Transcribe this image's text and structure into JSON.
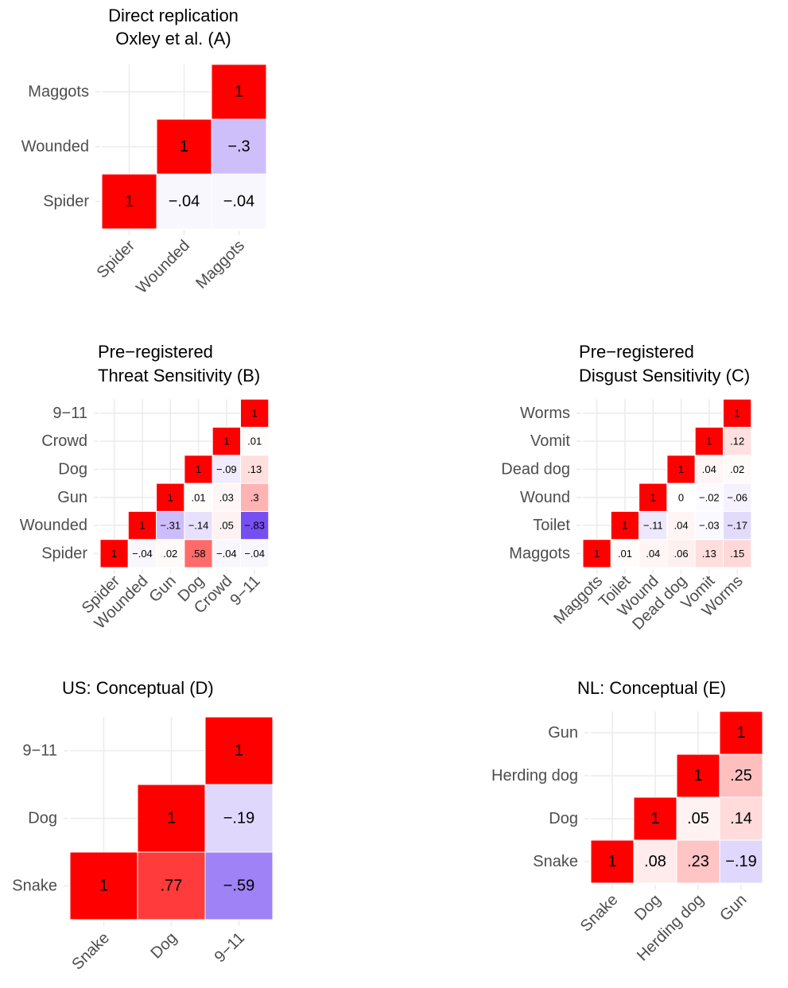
{
  "figure_type": "correlation heatmaps (lower-triangle, shown as upper)",
  "color_scale": {
    "low": "#5a2bf0",
    "mid": "#ffffff",
    "high": "#ff0000",
    "limits": [
      -1,
      1
    ]
  },
  "chart_data": [
    {
      "id": "A",
      "type": "heatmap",
      "title": "Direct replication\n Oxley et al. (A)",
      "variables": [
        "Spider",
        "Wounded",
        "Maggots"
      ],
      "cells": [
        {
          "x": "Spider",
          "y": "Spider",
          "value": 1,
          "label": "1"
        },
        {
          "x": "Wounded",
          "y": "Spider",
          "value": -0.04,
          "label": "−.04"
        },
        {
          "x": "Maggots",
          "y": "Spider",
          "value": -0.04,
          "label": "−.04"
        },
        {
          "x": "Wounded",
          "y": "Wounded",
          "value": 1,
          "label": "1"
        },
        {
          "x": "Maggots",
          "y": "Wounded",
          "value": -0.3,
          "label": "−.3"
        },
        {
          "x": "Maggots",
          "y": "Maggots",
          "value": 1,
          "label": "1"
        }
      ]
    },
    {
      "id": "B",
      "type": "heatmap",
      "title": "Pre−registered\n Threat Sensitivity (B)",
      "variables": [
        "Spider",
        "Wounded",
        "Gun",
        "Dog",
        "Crowd",
        "9−11"
      ],
      "cells": [
        {
          "x": "Spider",
          "y": "Spider",
          "value": 1,
          "label": "1"
        },
        {
          "x": "Wounded",
          "y": "Spider",
          "value": -0.04,
          "label": "−.04"
        },
        {
          "x": "Gun",
          "y": "Spider",
          "value": 0.02,
          "label": ".02"
        },
        {
          "x": "Dog",
          "y": "Spider",
          "value": 0.58,
          "label": ".58"
        },
        {
          "x": "Crowd",
          "y": "Spider",
          "value": -0.04,
          "label": "−.04"
        },
        {
          "x": "9−11",
          "y": "Spider",
          "value": -0.04,
          "label": "−.04"
        },
        {
          "x": "Wounded",
          "y": "Wounded",
          "value": 1,
          "label": "1"
        },
        {
          "x": "Gun",
          "y": "Wounded",
          "value": -0.31,
          "label": "−.31"
        },
        {
          "x": "Dog",
          "y": "Wounded",
          "value": -0.14,
          "label": "−.14"
        },
        {
          "x": "Crowd",
          "y": "Wounded",
          "value": 0.05,
          "label": ".05"
        },
        {
          "x": "9−11",
          "y": "Wounded",
          "value": -0.83,
          "label": "−.83"
        },
        {
          "x": "Gun",
          "y": "Gun",
          "value": 1,
          "label": "1"
        },
        {
          "x": "Dog",
          "y": "Gun",
          "value": 0.01,
          "label": ".01"
        },
        {
          "x": "Crowd",
          "y": "Gun",
          "value": 0.03,
          "label": ".03"
        },
        {
          "x": "9−11",
          "y": "Gun",
          "value": 0.3,
          "label": ".3"
        },
        {
          "x": "Dog",
          "y": "Dog",
          "value": 1,
          "label": "1"
        },
        {
          "x": "Crowd",
          "y": "Dog",
          "value": -0.09,
          "label": "−.09"
        },
        {
          "x": "9−11",
          "y": "Dog",
          "value": 0.13,
          "label": ".13"
        },
        {
          "x": "Crowd",
          "y": "Crowd",
          "value": 1,
          "label": "1"
        },
        {
          "x": "9−11",
          "y": "Crowd",
          "value": 0.01,
          "label": ".01"
        },
        {
          "x": "9−11",
          "y": "9−11",
          "value": 1,
          "label": "1"
        }
      ]
    },
    {
      "id": "C",
      "type": "heatmap",
      "title": "Pre−registered\n Disgust Sensitivity (C)",
      "variables": [
        "Maggots",
        "Toilet",
        "Wound",
        "Dead dog",
        "Vomit",
        "Worms"
      ],
      "cells": [
        {
          "x": "Maggots",
          "y": "Maggots",
          "value": 1,
          "label": "1"
        },
        {
          "x": "Toilet",
          "y": "Maggots",
          "value": 0.01,
          "label": ".01"
        },
        {
          "x": "Wound",
          "y": "Maggots",
          "value": 0.04,
          "label": ".04"
        },
        {
          "x": "Dead dog",
          "y": "Maggots",
          "value": 0.06,
          "label": ".06"
        },
        {
          "x": "Vomit",
          "y": "Maggots",
          "value": 0.13,
          "label": ".13"
        },
        {
          "x": "Worms",
          "y": "Maggots",
          "value": 0.15,
          "label": ".15"
        },
        {
          "x": "Toilet",
          "y": "Toilet",
          "value": 1,
          "label": "1"
        },
        {
          "x": "Wound",
          "y": "Toilet",
          "value": -0.11,
          "label": "−.11"
        },
        {
          "x": "Dead dog",
          "y": "Toilet",
          "value": 0.04,
          "label": ".04"
        },
        {
          "x": "Vomit",
          "y": "Toilet",
          "value": -0.03,
          "label": "−.03"
        },
        {
          "x": "Worms",
          "y": "Toilet",
          "value": -0.17,
          "label": "−.17"
        },
        {
          "x": "Wound",
          "y": "Wound",
          "value": 1,
          "label": "1"
        },
        {
          "x": "Dead dog",
          "y": "Wound",
          "value": 0,
          "label": "0"
        },
        {
          "x": "Vomit",
          "y": "Wound",
          "value": -0.02,
          "label": "−.02"
        },
        {
          "x": "Worms",
          "y": "Wound",
          "value": -0.06,
          "label": "−.06"
        },
        {
          "x": "Dead dog",
          "y": "Dead dog",
          "value": 1,
          "label": "1"
        },
        {
          "x": "Vomit",
          "y": "Dead dog",
          "value": 0.04,
          "label": ".04"
        },
        {
          "x": "Worms",
          "y": "Dead dog",
          "value": 0.02,
          "label": ".02"
        },
        {
          "x": "Vomit",
          "y": "Vomit",
          "value": 1,
          "label": "1"
        },
        {
          "x": "Worms",
          "y": "Vomit",
          "value": 0.12,
          "label": ".12"
        },
        {
          "x": "Worms",
          "y": "Worms",
          "value": 1,
          "label": "1"
        }
      ]
    },
    {
      "id": "D",
      "type": "heatmap",
      "title": "US: Conceptual (D)",
      "variables": [
        "Snake",
        "Dog",
        "9−11"
      ],
      "cells": [
        {
          "x": "Snake",
          "y": "Snake",
          "value": 1,
          "label": "1"
        },
        {
          "x": "Dog",
          "y": "Snake",
          "value": 0.77,
          "label": ".77"
        },
        {
          "x": "9−11",
          "y": "Snake",
          "value": -0.59,
          "label": "−.59"
        },
        {
          "x": "Dog",
          "y": "Dog",
          "value": 1,
          "label": "1"
        },
        {
          "x": "9−11",
          "y": "Dog",
          "value": -0.19,
          "label": "−.19"
        },
        {
          "x": "9−11",
          "y": "9−11",
          "value": 1,
          "label": "1"
        }
      ]
    },
    {
      "id": "E",
      "type": "heatmap",
      "title": "NL: Conceptual (E)",
      "variables": [
        "Snake",
        "Dog",
        "Herding dog",
        "Gun"
      ],
      "cells": [
        {
          "x": "Snake",
          "y": "Snake",
          "value": 1,
          "label": "1"
        },
        {
          "x": "Dog",
          "y": "Snake",
          "value": 0.08,
          "label": ".08"
        },
        {
          "x": "Herding dog",
          "y": "Snake",
          "value": 0.23,
          "label": ".23"
        },
        {
          "x": "Gun",
          "y": "Snake",
          "value": -0.19,
          "label": "−.19"
        },
        {
          "x": "Dog",
          "y": "Dog",
          "value": 1,
          "label": "1"
        },
        {
          "x": "Herding dog",
          "y": "Dog",
          "value": 0.05,
          "label": ".05"
        },
        {
          "x": "Gun",
          "y": "Dog",
          "value": 0.14,
          "label": ".14"
        },
        {
          "x": "Herding dog",
          "y": "Herding dog",
          "value": 1,
          "label": "1"
        },
        {
          "x": "Gun",
          "y": "Herding dog",
          "value": 0.25,
          "label": ".25"
        },
        {
          "x": "Gun",
          "y": "Gun",
          "value": 1,
          "label": "1"
        }
      ]
    }
  ]
}
